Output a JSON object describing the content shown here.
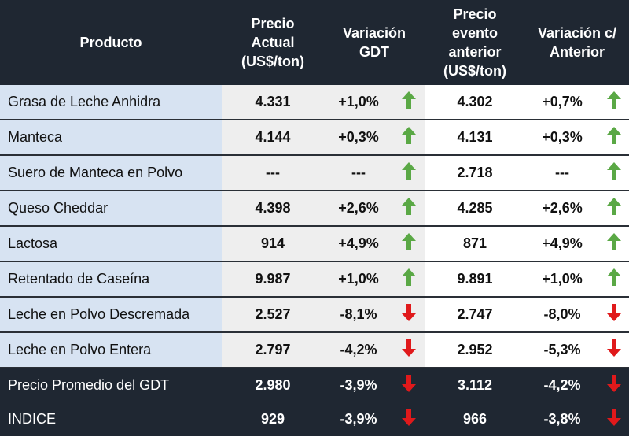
{
  "headers": {
    "producto": "Producto",
    "precio_actual": [
      "Precio",
      "Actual",
      "(US$/ton)"
    ],
    "variacion_gdt": [
      "Variación",
      "GDT"
    ],
    "precio_anterior": [
      "Precio",
      "evento",
      "anterior",
      "(US$/ton)"
    ],
    "variacion_anterior": [
      "Variación c/",
      "Anterior"
    ]
  },
  "colors": {
    "up": "#5aa845",
    "down": "#e0191b",
    "dark": "#1f2732",
    "label_bg": "#d7e3f2"
  },
  "rows": [
    {
      "name": "Grasa de Leche Anhidra",
      "precio": "4.331",
      "var": "+1,0%",
      "dir": "up",
      "prev": "4.302",
      "var_prev": "+0,7%",
      "dir_prev": "up"
    },
    {
      "name": "Manteca",
      "precio": "4.144",
      "var": "+0,3%",
      "dir": "up",
      "prev": "4.131",
      "var_prev": "+0,3%",
      "dir_prev": "up"
    },
    {
      "name": "Suero de Manteca en Polvo",
      "precio": "---",
      "var": "---",
      "dir": "up",
      "prev": "2.718",
      "var_prev": "---",
      "dir_prev": "up"
    },
    {
      "name": "Queso Cheddar",
      "precio": "4.398",
      "var": "+2,6%",
      "dir": "up",
      "prev": "4.285",
      "var_prev": "+2,6%",
      "dir_prev": "up"
    },
    {
      "name": "Lactosa",
      "precio": "914",
      "var": "+4,9%",
      "dir": "up",
      "prev": "871",
      "var_prev": "+4,9%",
      "dir_prev": "up"
    },
    {
      "name": "Retentado de Caseína",
      "precio": "9.987",
      "var": "+1,0%",
      "dir": "up",
      "prev": "9.891",
      "var_prev": "+1,0%",
      "dir_prev": "up"
    },
    {
      "name": "Leche en Polvo Descremada",
      "precio": "2.527",
      "var": "-8,1%",
      "dir": "down",
      "prev": "2.747",
      "var_prev": "-8,0%",
      "dir_prev": "down"
    },
    {
      "name": "Leche en Polvo Entera",
      "precio": "2.797",
      "var": "-4,2%",
      "dir": "down",
      "prev": "2.952",
      "var_prev": "-5,3%",
      "dir_prev": "down"
    },
    {
      "name": "Precio Promedio del GDT",
      "precio": "2.980",
      "var": "-3,9%",
      "dir": "down",
      "prev": "3.112",
      "var_prev": "-4,2%",
      "dir_prev": "down",
      "summary": true
    },
    {
      "name": "INDICE",
      "precio": "929",
      "var": "-3,9%",
      "dir": "down",
      "prev": "966",
      "var_prev": "-3,8%",
      "dir_prev": "down",
      "summary": true
    }
  ]
}
